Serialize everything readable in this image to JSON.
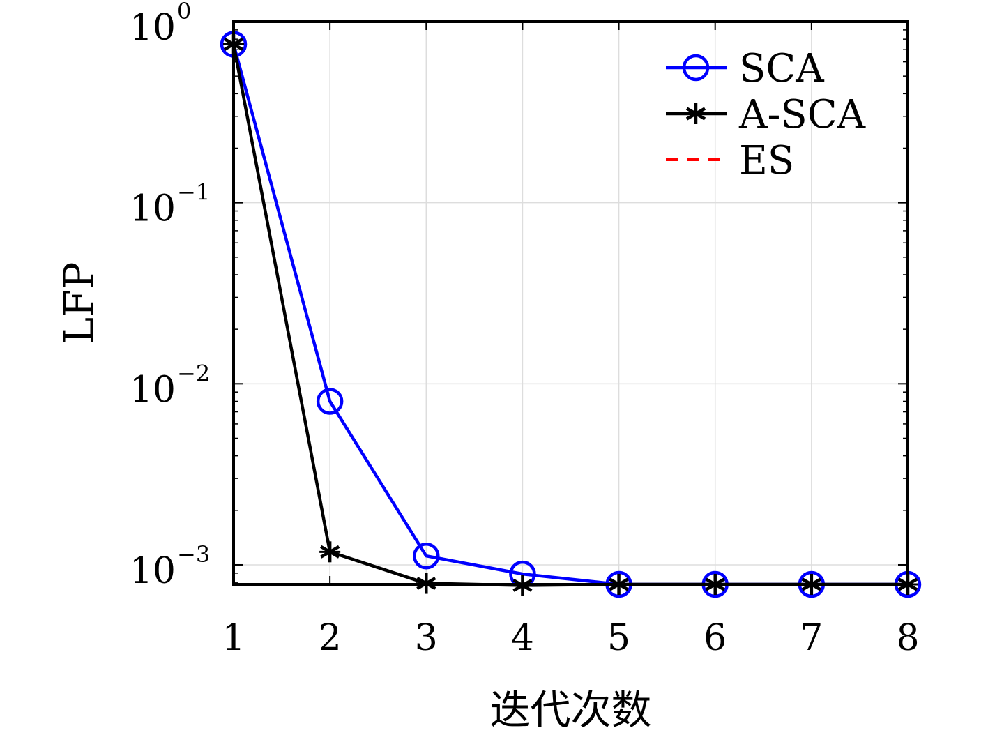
{
  "chart_data": {
    "type": "line",
    "xlabel": "迭代次数",
    "ylabel": "LFP",
    "yscale": "log",
    "xlim": [
      1,
      8
    ],
    "ylim": [
      0.00078,
      1
    ],
    "x": [
      1,
      2,
      3,
      4,
      5,
      6,
      7,
      8
    ],
    "x_ticks": [
      "1",
      "2",
      "3",
      "4",
      "5",
      "6",
      "7",
      "8"
    ],
    "y_ticks": [
      {
        "value": 1,
        "base": "10",
        "exp": "0"
      },
      {
        "value": 0.1,
        "base": "10",
        "exp": "−1"
      },
      {
        "value": 0.01,
        "base": "10",
        "exp": "−2"
      },
      {
        "value": 0.001,
        "base": "10",
        "exp": "−3"
      }
    ],
    "grid": true,
    "legend_position": "top-right",
    "series": [
      {
        "name": "SCA",
        "color": "#0000ff",
        "marker": "circle",
        "line": "solid",
        "values": [
          0.75,
          0.008,
          0.00112,
          0.00089,
          0.00078,
          0.00078,
          0.00078,
          0.00078
        ]
      },
      {
        "name": "A-SCA",
        "color": "#000000",
        "marker": "asterisk",
        "line": "solid",
        "values": [
          0.75,
          0.00118,
          0.00079,
          0.00077,
          0.00078,
          0.00078,
          0.00078,
          0.00078
        ]
      },
      {
        "name": "ES",
        "color": "#ff0000",
        "marker": "none",
        "line": "dashed",
        "values": [
          0.00078,
          0.00078,
          0.00078,
          0.00078,
          0.00078,
          0.00078,
          0.00078,
          0.00078
        ]
      }
    ]
  }
}
